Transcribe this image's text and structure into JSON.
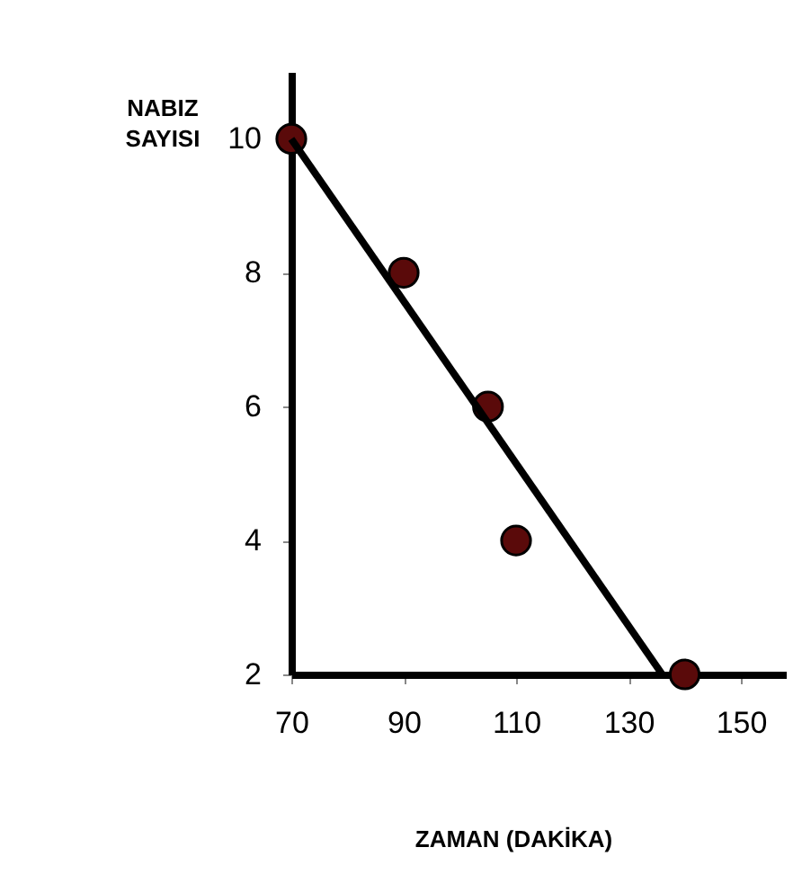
{
  "chart_data": {
    "type": "scatter",
    "xlabel": "ZAMAN (DAKİKA)",
    "ylabel": "NABIZ SAYISI",
    "x": [
      70,
      90,
      105,
      110,
      140
    ],
    "series": [
      {
        "color": "#5a0a0a",
        "values": [
          10,
          8,
          6,
          4,
          2
        ],
        "marker": "circle"
      },
      {
        "type": "line",
        "color": "#000000",
        "x": [
          70,
          136
        ],
        "values": [
          10,
          2
        ],
        "line_style": "solid",
        "marker": "none"
      }
    ],
    "xlim": [
      70,
      158
    ],
    "ylim": [
      2,
      11
    ],
    "xticks": [
      70,
      90,
      110,
      130,
      150
    ],
    "yticks": [
      2,
      4,
      6,
      8,
      10
    ],
    "grid": false
  }
}
